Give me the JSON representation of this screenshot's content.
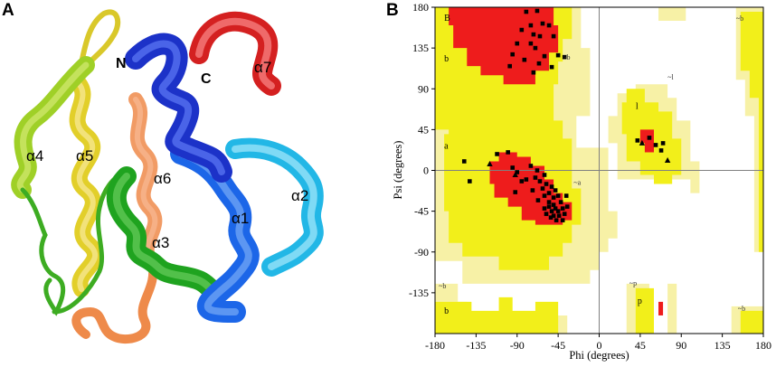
{
  "figure": {
    "panel_a_letter": "A",
    "panel_b_letter": "B"
  },
  "structure": {
    "n_terminus": "N",
    "c_terminus": "C",
    "helices": [
      "α1",
      "α2",
      "α3",
      "α4",
      "α5",
      "α6",
      "α7"
    ],
    "colors": {
      "alpha1": "#1a4fe0",
      "alpha2": "#22b7e6",
      "alpha3": "#1fa31f",
      "alpha4": "#7cc21a",
      "alpha5": "#e2cf2a",
      "alpha6": "#ee8a4a",
      "alpha7": "#d42020",
      "n_helix": "#1c32c8"
    }
  },
  "chart_data": {
    "type": "scatter",
    "xlabel": "Phi (degrees)",
    "ylabel": "Psi (degrees)",
    "xlim": [
      -180,
      180
    ],
    "ylim": [
      -180,
      180
    ],
    "xticks": [
      "-180",
      "-135",
      "-90",
      "-45",
      "0",
      "45",
      "90",
      "135",
      "180"
    ],
    "yticks": [
      "180",
      "135",
      "90",
      "45",
      "0",
      "-45",
      "-90",
      "-135"
    ],
    "region_labels": [
      "B",
      "b",
      "a",
      "~a",
      "~b",
      "~l",
      "l",
      "~p",
      "p",
      "b",
      "~b",
      "~b",
      "~b"
    ],
    "region_colors": {
      "core": "#ee1c1c",
      "allowed": "#f2ef1a",
      "generous": "#f7f1a6",
      "disallowed": "#ffffff"
    },
    "series": [
      {
        "marker": "square",
        "points": [
          [
            -80,
            175
          ],
          [
            -68,
            176
          ],
          [
            -75,
            160
          ],
          [
            -62,
            162
          ],
          [
            -55,
            160
          ],
          [
            -85,
            155
          ],
          [
            -72,
            150
          ],
          [
            -90,
            140
          ],
          [
            -75,
            140
          ],
          [
            -65,
            148
          ],
          [
            -50,
            148
          ],
          [
            -95,
            128
          ],
          [
            -70,
            135
          ],
          [
            -60,
            126
          ],
          [
            -45,
            127
          ],
          [
            -98,
            115
          ],
          [
            -82,
            122
          ],
          [
            -66,
            118
          ],
          [
            -52,
            114
          ],
          [
            -72,
            108
          ],
          [
            -38,
            125
          ],
          [
            -100,
            20
          ],
          [
            -95,
            3
          ],
          [
            -90,
            -2
          ],
          [
            -75,
            5
          ],
          [
            -68,
            0
          ],
          [
            -60,
            -5
          ],
          [
            -70,
            -8
          ],
          [
            -80,
            -10
          ],
          [
            -65,
            -12
          ],
          [
            -58,
            -15
          ],
          [
            -52,
            -18
          ],
          [
            -62,
            -20
          ],
          [
            -55,
            -25
          ],
          [
            -48,
            -22
          ],
          [
            -50,
            -30
          ],
          [
            -60,
            -28
          ],
          [
            -45,
            -28
          ],
          [
            -55,
            -35
          ],
          [
            -50,
            -38
          ],
          [
            -42,
            -35
          ],
          [
            -48,
            -42
          ],
          [
            -55,
            -40
          ],
          [
            -52,
            -45
          ],
          [
            -45,
            -45
          ],
          [
            -40,
            -42
          ],
          [
            -58,
            -48
          ],
          [
            -50,
            -50
          ],
          [
            -44,
            -50
          ],
          [
            -38,
            -48
          ],
          [
            -35,
            -40
          ],
          [
            -60,
            -42
          ],
          [
            -53,
            -52
          ],
          [
            -47,
            -55
          ],
          [
            -40,
            -55
          ],
          [
            -85,
            -12
          ],
          [
            -112,
            18
          ],
          [
            -142,
            -12
          ],
          [
            -148,
            10
          ],
          [
            -92,
            -24
          ],
          [
            -36,
            -28
          ],
          [
            -67,
            -33
          ],
          [
            -73,
            -22
          ],
          [
            42,
            33
          ],
          [
            55,
            36
          ],
          [
            62,
            28
          ],
          [
            70,
            30
          ],
          [
            68,
            22
          ]
        ]
      },
      {
        "marker": "triangle",
        "points": [
          [
            -120,
            7
          ],
          [
            -92,
            -5
          ],
          [
            47,
            30
          ],
          [
            75,
            11
          ]
        ]
      }
    ]
  }
}
